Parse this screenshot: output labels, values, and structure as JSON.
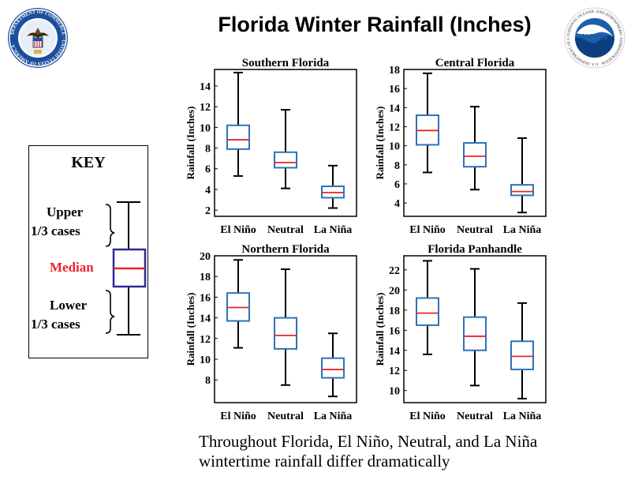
{
  "page": {
    "title": "Florida Winter Rainfall (Inches)"
  },
  "key": {
    "title": "KEY",
    "upper_line1": "Upper",
    "upper_line2": "1/3  cases",
    "median": "Median",
    "lower_line1": "Lower",
    "lower_line2": "1/3  cases",
    "median_color": "#e8242a",
    "box_color": "#2a2a96"
  },
  "caption": {
    "line1": "Throughout Florida, El Niño, Neutral, and La Niña",
    "line2": "wintertime rainfall differ dramatically"
  },
  "logos": {
    "left": {
      "icon": "department-of-commerce-seal-icon",
      "text": "DEPARTMENT OF COMMERCE · UNITED STATES OF AMERICA"
    },
    "right": {
      "icon": "noaa-logo-icon",
      "center_text": "NOAA",
      "text": "NATIONAL OCEANIC AND ATMOSPHERIC ADMINISTRATION · U.S. DEPARTMENT OF COMMERCE"
    }
  },
  "colors": {
    "box_stroke": "#2e73b8",
    "median": "#e8242a",
    "whisker": "#000000"
  },
  "chart_data": [
    {
      "type": "box",
      "title": "Southern Florida",
      "ylabel": "Rainfall (Inches)",
      "categories": [
        "El Niño",
        "Neutral",
        "La Niña"
      ],
      "ylim": [
        1.4,
        15.6
      ],
      "yticks": [
        2,
        4,
        6,
        8,
        10,
        12,
        14
      ],
      "boxes": [
        {
          "min": 5.3,
          "q1": 7.9,
          "median": 8.8,
          "q3": 10.2,
          "max": 15.3
        },
        {
          "min": 4.1,
          "q1": 6.1,
          "median": 6.6,
          "q3": 7.6,
          "max": 11.7
        },
        {
          "min": 2.2,
          "q1": 3.2,
          "median": 3.7,
          "q3": 4.3,
          "max": 6.3
        }
      ]
    },
    {
      "type": "box",
      "title": "Central Florida",
      "ylabel": "Rainfall (Inches)",
      "categories": [
        "El Niño",
        "Neutral",
        "La Niña"
      ],
      "ylim": [
        2.6,
        18.0
      ],
      "yticks": [
        4,
        6,
        8,
        10,
        12,
        14,
        16,
        18
      ],
      "boxes": [
        {
          "min": 7.2,
          "q1": 10.1,
          "median": 11.6,
          "q3": 13.2,
          "max": 17.6
        },
        {
          "min": 5.4,
          "q1": 7.8,
          "median": 8.9,
          "q3": 10.3,
          "max": 14.1
        },
        {
          "min": 3.0,
          "q1": 4.8,
          "median": 5.2,
          "q3": 5.9,
          "max": 10.8
        }
      ]
    },
    {
      "type": "box",
      "title": "Northern Florida",
      "ylabel": "Rainfall (Inches)",
      "categories": [
        "El Niño",
        "Neutral",
        "La Niña"
      ],
      "ylim": [
        5.8,
        20.0
      ],
      "yticks": [
        8,
        10,
        12,
        14,
        16,
        18,
        20
      ],
      "boxes": [
        {
          "min": 11.1,
          "q1": 13.7,
          "median": 15.0,
          "q3": 16.4,
          "max": 19.6
        },
        {
          "min": 7.5,
          "q1": 11.0,
          "median": 12.3,
          "q3": 14.0,
          "max": 18.7
        },
        {
          "min": 6.4,
          "q1": 8.2,
          "median": 9.0,
          "q3": 10.1,
          "max": 12.5
        }
      ]
    },
    {
      "type": "box",
      "title": "Florida Panhandle",
      "ylabel": "Rainfall (Inches)",
      "categories": [
        "El Niño",
        "Neutral",
        "La Niña"
      ],
      "ylim": [
        8.8,
        23.4
      ],
      "yticks": [
        10,
        12,
        14,
        16,
        18,
        20,
        22
      ],
      "boxes": [
        {
          "min": 13.6,
          "q1": 16.5,
          "median": 17.7,
          "q3": 19.2,
          "max": 22.9
        },
        {
          "min": 10.5,
          "q1": 14.0,
          "median": 15.4,
          "q3": 17.3,
          "max": 22.1
        },
        {
          "min": 9.2,
          "q1": 12.1,
          "median": 13.4,
          "q3": 14.9,
          "max": 18.7
        }
      ]
    }
  ]
}
